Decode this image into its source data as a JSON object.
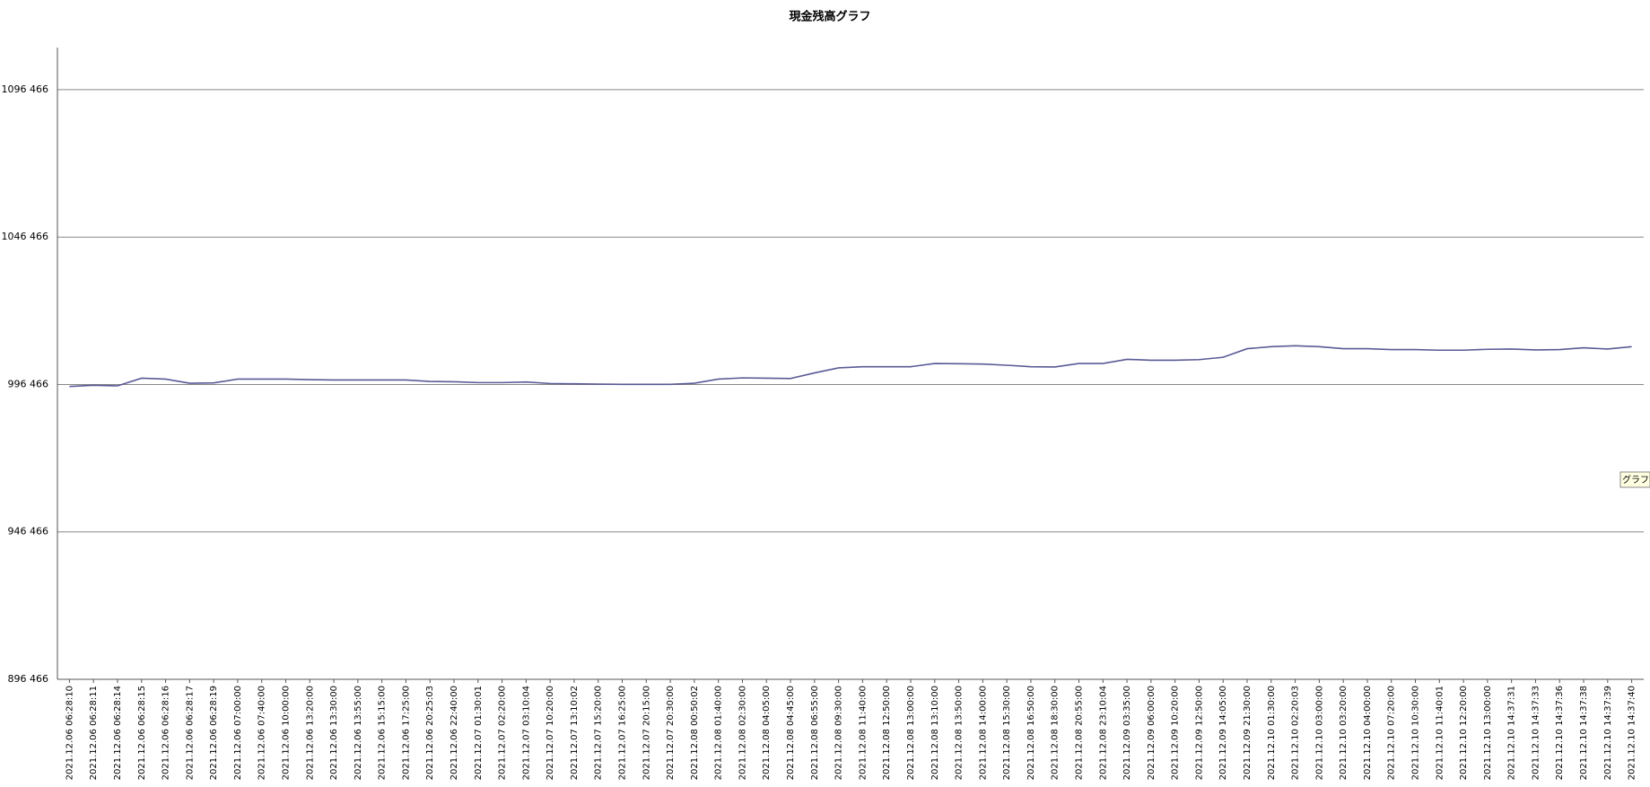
{
  "chart_data": {
    "type": "line",
    "title": "現金残高グラフ",
    "categories": [
      "2021.12.06 06:28:10",
      "2021.12.06 06:28:11",
      "2021.12.06 06:28:14",
      "2021.12.06 06:28:15",
      "2021.12.06 06:28:16",
      "2021.12.06 06:28:17",
      "2021.12.06 06:28:19",
      "2021.12.06 07:00:00",
      "2021.12.06 07:40:00",
      "2021.12.06 10:00:00",
      "2021.12.06 13:20:00",
      "2021.12.06 13:30:00",
      "2021.12.06 13:55:00",
      "2021.12.06 15:15:00",
      "2021.12.06 17:25:00",
      "2021.12.06 20:25:03",
      "2021.12.06 22:40:00",
      "2021.12.07 01:30:01",
      "2021.12.07 02:20:00",
      "2021.12.07 03:10:04",
      "2021.12.07 10:20:00",
      "2021.12.07 13:10:02",
      "2021.12.07 15:20:00",
      "2021.12.07 16:25:00",
      "2021.12.07 20:15:00",
      "2021.12.07 20:30:00",
      "2021.12.08 00:50:02",
      "2021.12.08 01:40:00",
      "2021.12.08 02:30:00",
      "2021.12.08 04:05:00",
      "2021.12.08 04:45:00",
      "2021.12.08 06:55:00",
      "2021.12.08 09:30:00",
      "2021.12.08 11:40:00",
      "2021.12.08 12:50:00",
      "2021.12.08 13:00:00",
      "2021.12.08 13:10:00",
      "2021.12.08 13:50:00",
      "2021.12.08 14:00:00",
      "2021.12.08 15:30:00",
      "2021.12.08 16:50:00",
      "2021.12.08 18:30:00",
      "2021.12.08 20:55:00",
      "2021.12.08 23:10:04",
      "2021.12.09 03:35:00",
      "2021.12.09 06:00:00",
      "2021.12.09 10:20:00",
      "2021.12.09 12:50:00",
      "2021.12.09 14:05:00",
      "2021.12.09 21:30:00",
      "2021.12.10 01:30:00",
      "2021.12.10 02:20:03",
      "2021.12.10 03:00:00",
      "2021.12.10 03:20:00",
      "2021.12.10 04:00:00",
      "2021.12.10 07:20:00",
      "2021.12.10 10:30:00",
      "2021.12.10 11:40:01",
      "2021.12.10 12:20:00",
      "2021.12.10 13:00:00",
      "2021.12.10 14:37:31",
      "2021.12.10 14:37:33",
      "2021.12.10 14:37:36",
      "2021.12.10 14:37:38",
      "2021.12.10 14:37:39",
      "2021.12.10 14:37:40"
    ],
    "values": [
      995800,
      996200,
      996000,
      998600,
      998300,
      996900,
      997000,
      998300,
      998300,
      998300,
      998100,
      998000,
      998000,
      998000,
      998000,
      997500,
      997400,
      997100,
      997100,
      997300,
      996800,
      996700,
      996600,
      996500,
      996500,
      996500,
      996900,
      998300,
      998700,
      998600,
      998500,
      1000400,
      1002100,
      1002500,
      1002500,
      1002500,
      1003600,
      1003500,
      1003400,
      1003000,
      1002500,
      1002400,
      1003600,
      1003600,
      1005000,
      1004700,
      1004700,
      1004900,
      1005700,
      1008600,
      1009300,
      1009600,
      1009300,
      1008600,
      1008600,
      1008300,
      1008300,
      1008100,
      1008100,
      1008400,
      1008500,
      1008200,
      1008300,
      1008900,
      1008500,
      1009300
    ],
    "color": "#5a5a96",
    "ylim": [
      896466,
      1110750
    ],
    "yticks": [
      {
        "value": 896466,
        "label": "896 466"
      },
      {
        "value": 946466,
        "label": "946 466"
      },
      {
        "value": 996466,
        "label": "996 466"
      },
      {
        "value": 1046466,
        "label": "1046 466"
      },
      {
        "value": 1096466,
        "label": "1096 466"
      }
    ],
    "grid": true
  },
  "tooltip": "グラフ"
}
